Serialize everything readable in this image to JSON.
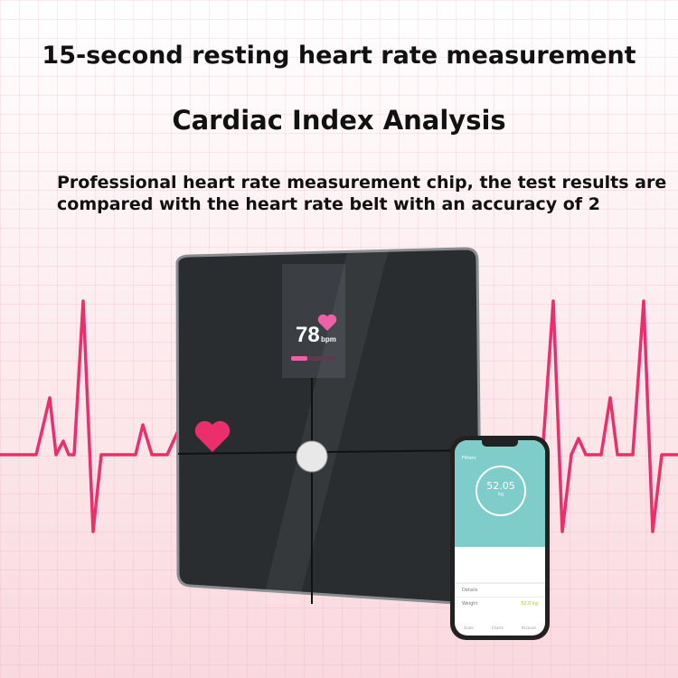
{
  "headline": "15-second resting heart rate measurement",
  "title": "Cardiac Index Analysis",
  "description": "Professional heart rate measurement chip, the test results are compared with the heart rate belt with an accuracy of 2",
  "scale_display": {
    "value": "78",
    "unit": "bpm"
  },
  "phone": {
    "user": "Fitters",
    "weight": "52.05",
    "unit": "kg",
    "details": "Details",
    "weight_label": "Weight",
    "weight_value": "52.0 kg",
    "nav": [
      "Scale",
      "Charts",
      "Account"
    ]
  },
  "colors": {
    "ecg": "#ea2f6c",
    "scale": "#2a2d30",
    "teal": "#7ecdcb"
  }
}
